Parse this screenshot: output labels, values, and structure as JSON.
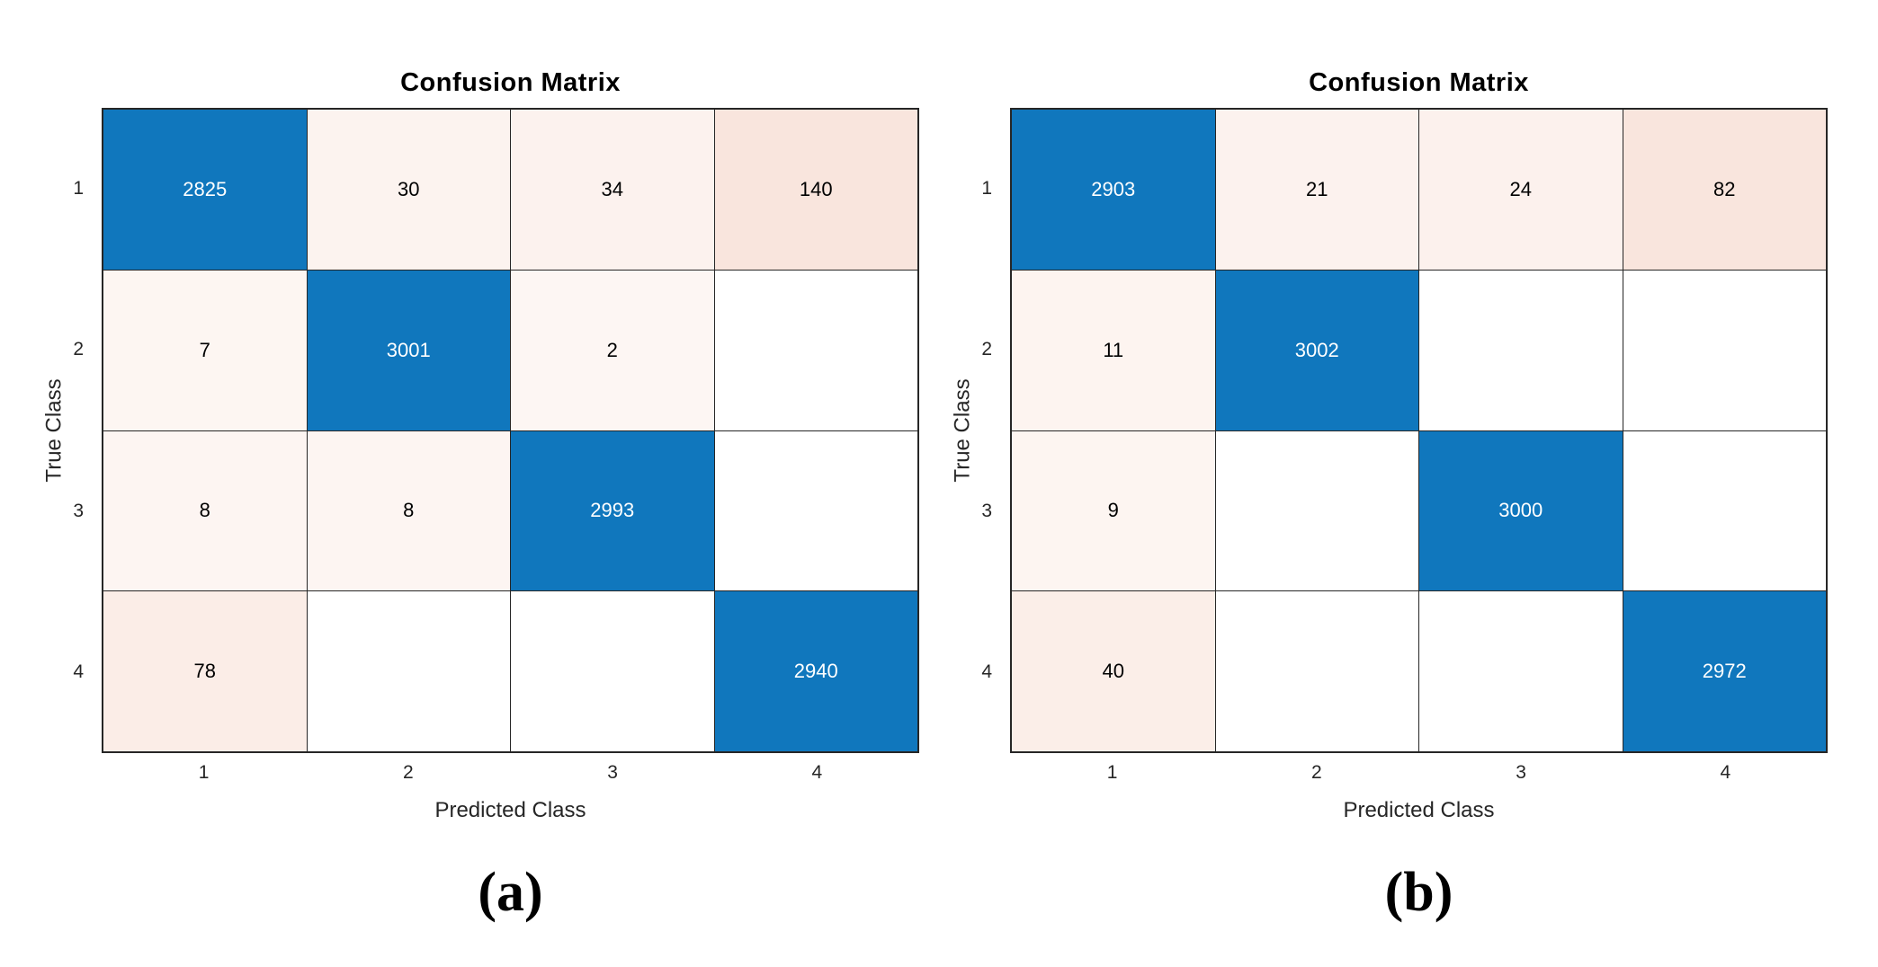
{
  "page": {
    "background": "#ffffff"
  },
  "colors": {
    "diagonal": "#1077bd",
    "diagonal_text": "#ffffff",
    "off_diagonal_base": "#d95319",
    "empty_cell": "#ffffff",
    "cell_text": "#000000",
    "axis_text": "#262626",
    "grid_line": "#262626"
  },
  "chart_data": [
    {
      "type": "heatmap",
      "title": "Confusion Matrix",
      "xlabel": "Predicted Class",
      "ylabel": "True Class",
      "x_tick_labels": [
        "1",
        "2",
        "3",
        "4"
      ],
      "y_tick_labels": [
        "1",
        "2",
        "3",
        "4"
      ],
      "matrix": [
        [
          2825,
          30,
          34,
          140
        ],
        [
          7,
          3001,
          2,
          null
        ],
        [
          8,
          8,
          2993,
          null
        ],
        [
          78,
          null,
          null,
          2940
        ]
      ],
      "caption": "(a)",
      "legend": "none",
      "grid": "on"
    },
    {
      "type": "heatmap",
      "title": "Confusion Matrix",
      "xlabel": "Predicted Class",
      "ylabel": "True Class",
      "x_tick_labels": [
        "1",
        "2",
        "3",
        "4"
      ],
      "y_tick_labels": [
        "1",
        "2",
        "3",
        "4"
      ],
      "matrix": [
        [
          2903,
          21,
          24,
          82
        ],
        [
          11,
          3002,
          null,
          null
        ],
        [
          9,
          null,
          3000,
          null
        ],
        [
          40,
          null,
          null,
          2972
        ]
      ],
      "caption": "(b)",
      "legend": "none",
      "grid": "on"
    }
  ]
}
